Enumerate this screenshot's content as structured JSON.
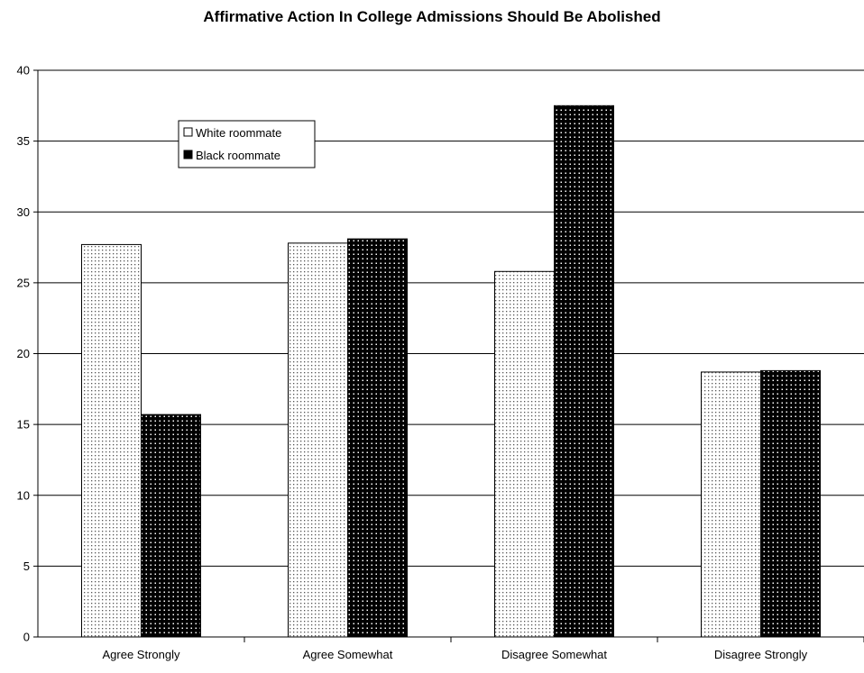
{
  "chart_data": {
    "type": "bar",
    "title": "Affirmative Action In College Admissions Should Be Abolished",
    "xlabel": "",
    "ylabel": "",
    "ylim": [
      0,
      40
    ],
    "yticks": [
      0,
      5,
      10,
      15,
      20,
      25,
      30,
      35,
      40
    ],
    "grid": true,
    "legend_placement": "top-left",
    "categories": [
      "Agree Strongly",
      "Agree Somewhat",
      "Disagree Somewhat",
      "Disagree Strongly"
    ],
    "series": [
      {
        "name": "White roommate",
        "values": [
          27.7,
          27.8,
          25.8,
          18.7
        ],
        "pattern": "light-dotted",
        "color": "#ffffff"
      },
      {
        "name": "Black roommate",
        "values": [
          15.7,
          28.1,
          37.5,
          18.8
        ],
        "pattern": "dark-dotted",
        "color": "#000000"
      }
    ]
  }
}
